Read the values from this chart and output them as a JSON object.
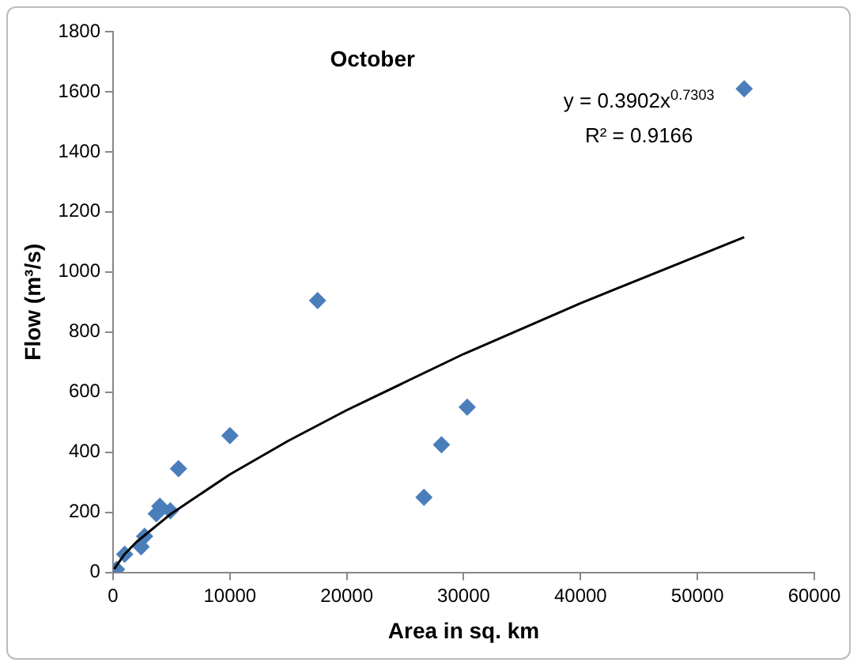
{
  "chart_data": {
    "type": "scatter",
    "title": "October",
    "xlabel": "Area in sq. km",
    "ylabel": "Flow (m³/s)",
    "xlim": [
      0,
      60000
    ],
    "xticks": [
      0,
      10000,
      20000,
      30000,
      40000,
      50000,
      60000
    ],
    "ylim": [
      0,
      1800
    ],
    "yticks": [
      0,
      200,
      400,
      600,
      800,
      1000,
      1200,
      1400,
      1600,
      1800
    ],
    "grid": false,
    "legend": false,
    "marker": "diamond",
    "annotations": [
      "y = 0.3902x$^{0.7303}$",
      "R² = 0.9166"
    ],
    "series": [
      {
        "color": "#4a7ebb",
        "x": [
          54000,
          17500,
          10000,
          5600,
          30300,
          28100,
          26600,
          4000,
          3700,
          4900,
          2700,
          2400,
          1000,
          300
        ],
        "values": [
          1610,
          905,
          455,
          345,
          550,
          425,
          250,
          220,
          195,
          205,
          120,
          85,
          60,
          10
        ]
      },
      {
        "type": "line",
        "color": "#000000",
        "marker": "none",
        "x": [
          100,
          1000,
          2000,
          5000,
          10000,
          15000,
          20000,
          30000,
          40000,
          54000
        ],
        "values": [
          11,
          61,
          101,
          196,
          326,
          438,
          540,
          727,
          896,
          1116
        ]
      }
    ]
  }
}
